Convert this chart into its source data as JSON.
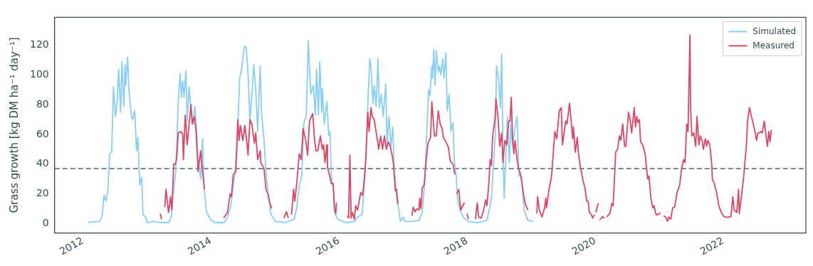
{
  "chart_data": {
    "type": "line",
    "ylabel": "Grass growth [kg DM ha⁻¹ day⁻¹]",
    "xlim": [
      2011.56,
      2023.29
    ],
    "xticks": [
      2012,
      2014,
      2016,
      2018,
      2020,
      2022
    ],
    "ylim": [
      -6.4,
      138.8
    ],
    "yticks": [
      0,
      20,
      40,
      60,
      80,
      100,
      120
    ],
    "legend": "top right",
    "ref_lines": [
      {
        "axis": "y",
        "value": 37,
        "color": "#4f6666",
        "line_style": "dashed"
      }
    ],
    "series": [
      {
        "name": "Simulated",
        "color": "#87cefa",
        "x": [
          2012.08,
          2012.26,
          2012.3,
          2012.33,
          2012.36,
          2012.39,
          2012.42,
          2012.45,
          2012.48,
          2012.51,
          2012.54,
          2012.56,
          2012.59,
          2012.61,
          2012.64,
          2012.66,
          2012.67,
          2012.7,
          2012.72,
          2012.76,
          2012.78,
          2012.81,
          2012.84,
          2012.86,
          2012.88,
          2012.89,
          2012.92,
          2012.94,
          2012.98,
          2013.01,
          2013.11,
          2013.22,
          2013.29,
          2013.34,
          2013.38,
          2013.42,
          2013.45,
          2013.49,
          2013.52,
          2013.54,
          2013.56,
          2013.58,
          2013.61,
          2013.63,
          2013.66,
          2013.69,
          2013.72,
          2013.75,
          2013.77,
          2013.8,
          2013.84,
          2013.87,
          2013.89,
          2013.93,
          2013.99,
          2014.06,
          2014.21,
          2014.26,
          2014.31,
          2014.37,
          2014.41,
          2014.45,
          2014.48,
          2014.52,
          2014.55,
          2014.58,
          2014.61,
          2014.64,
          2014.67,
          2014.7,
          2014.73,
          2014.77,
          2014.79,
          2014.83,
          2014.86,
          2014.9,
          2014.94,
          2015.01,
          2015.16,
          2015.3,
          2015.34,
          2015.38,
          2015.42,
          2015.45,
          2015.49,
          2015.52,
          2015.56,
          2015.6,
          2015.63,
          2015.65,
          2015.68,
          2015.7,
          2015.73,
          2015.74,
          2015.77,
          2015.81,
          2015.84,
          2015.86,
          2015.88,
          2015.91,
          2015.93,
          2015.98,
          2016.11,
          2016.24,
          2016.29,
          2016.36,
          2016.4,
          2016.42,
          2016.45,
          2016.48,
          2016.5,
          2016.53,
          2016.55,
          2016.58,
          2016.61,
          2016.63,
          2016.66,
          2016.69,
          2016.73,
          2016.75,
          2016.78,
          2016.81,
          2016.84,
          2016.86,
          2016.9,
          2016.93,
          2016.96,
          2017.0,
          2017.03,
          2017.14,
          2017.25,
          2017.3,
          2017.34,
          2017.37,
          2017.4,
          2017.42,
          2017.45,
          2017.46,
          2017.48,
          2017.5,
          2017.52,
          2017.55,
          2017.57,
          2017.59,
          2017.62,
          2017.64,
          2017.67,
          2017.69,
          2017.72,
          2017.75,
          2017.78,
          2017.8,
          2017.83,
          2017.85,
          2017.89,
          2017.94,
          2018.02,
          2018.16,
          2018.31,
          2018.38,
          2018.44,
          2018.46,
          2018.49,
          2018.52,
          2018.54,
          2018.56,
          2018.58,
          2018.6,
          2018.63,
          2018.66,
          2018.68,
          2018.71,
          2018.74,
          2018.78,
          2018.81,
          2018.85,
          2018.89,
          2018.95,
          2019.04
        ],
        "values": [
          0.9,
          1.4,
          4.4,
          19,
          15,
          22,
          47,
          48,
          92,
          72,
          84,
          104,
          75,
          109,
          79,
          107,
          93,
          112,
          90,
          72,
          70,
          76,
          49,
          58,
          36,
          26,
          31,
          6,
          4.4,
          0.6,
          1.4,
          0.6,
          0.6,
          0.6,
          4.4,
          23,
          35,
          81,
          101,
          85,
          96,
          85,
          103,
          69,
          92,
          75,
          67,
          79,
          67,
          44,
          30,
          57,
          26,
          8,
          2.9,
          0.6,
          0.6,
          4.4,
          12,
          32,
          53,
          98,
          104,
          119,
          119,
          101,
          70,
          86,
          107,
          90,
          62,
          106,
          75,
          56,
          35,
          17,
          6,
          1.4,
          0.6,
          2.9,
          10.5,
          26,
          32,
          67,
          73,
          123,
          87,
          93,
          73,
          104,
          73,
          109,
          75,
          91,
          67,
          82,
          59,
          62,
          32,
          23,
          7.5,
          2.9,
          0.6,
          1.4,
          4.4,
          6,
          29,
          46,
          79,
          111,
          105,
          81,
          93,
          79,
          111,
          78,
          87,
          72,
          94,
          53,
          72,
          52,
          65,
          40,
          17,
          10.5,
          1.4,
          4.4,
          1.4,
          1.4,
          2.1,
          7.5,
          29,
          61,
          90,
          86,
          106,
          98,
          117,
          93,
          116,
          102,
          106,
          100,
          111,
          98,
          115,
          76,
          87,
          62,
          68,
          43,
          32,
          17,
          9,
          4.4,
          1.4,
          0.6,
          2.1,
          17,
          59,
          106,
          98,
          78,
          114,
          50,
          17,
          40,
          72,
          41,
          67,
          52,
          62,
          72,
          32,
          32,
          9,
          2.1,
          1.4
        ]
      },
      {
        "name": "Measured",
        "color": "#e04462",
        "x": [
          2013.21,
          2013.23,
          2013.255,
          2013.28,
          2013.3,
          2013.33,
          2013.34,
          2013.37,
          2013.39,
          2013.42,
          2013.45,
          2013.47,
          2013.49,
          2013.53,
          2013.56,
          2013.57,
          2013.6,
          2013.63,
          2013.66,
          2013.69,
          2013.71,
          2013.74,
          2013.77,
          2013.8,
          2013.84,
          2013.87,
          2013.9,
          2014.05,
          2014.2,
          2014.26,
          2014.3,
          2014.32,
          2014.35,
          2014.39,
          2014.42,
          2014.44,
          2014.46,
          2014.5,
          2014.53,
          2014.56,
          2014.58,
          2014.61,
          2014.64,
          2014.68,
          2014.7,
          2014.73,
          2014.77,
          2014.78,
          2014.83,
          2014.86,
          2014.89,
          2014.92,
          2014.95,
          2015.05,
          2015.14,
          2015.18,
          2015.21,
          2015.235,
          2015.26,
          2015.29,
          2015.31,
          2015.34,
          2015.38,
          2015.41,
          2015.44,
          2015.48,
          2015.51,
          2015.54,
          2015.59,
          2015.62,
          2015.64,
          2015.67,
          2015.71,
          2015.74,
          2015.76,
          2015.78,
          2015.81,
          2015.82,
          2015.85,
          2015.88,
          2015.91,
          2015.93,
          2015.95,
          2015.96,
          2016.05,
          2016.13,
          2016.15,
          2016.17,
          2016.19,
          2016.21,
          2016.24,
          2016.26,
          2016.29,
          2016.34,
          2016.37,
          2016.4,
          2016.42,
          2016.45,
          2016.47,
          2016.5,
          2016.52,
          2016.55,
          2016.59,
          2016.62,
          2016.65,
          2016.68,
          2016.71,
          2016.74,
          2016.77,
          2016.8,
          2016.83,
          2016.85,
          2016.88,
          2016.9,
          2016.92,
          2017.03,
          2017.14,
          2017.16,
          2017.19,
          2017.22,
          2017.25,
          2017.26,
          2017.28,
          2017.3,
          2017.33,
          2017.36,
          2017.39,
          2017.43,
          2017.45,
          2017.49,
          2017.52,
          2017.55,
          2017.58,
          2017.61,
          2017.63,
          2017.67,
          2017.71,
          2017.74,
          2017.78,
          2017.81,
          2017.825,
          2017.84,
          2017.87,
          2017.9,
          2017.92,
          2017.96,
          2017.98,
          2018.0,
          2018.02,
          2018.07,
          2018.13,
          2018.16,
          2018.18,
          2018.22,
          2018.25,
          2018.29,
          2018.31,
          2018.34,
          2018.36,
          2018.38,
          2018.4,
          2018.44,
          2018.45,
          2018.48,
          2018.51,
          2018.54,
          2018.56,
          2018.59,
          2018.62,
          2018.65,
          2018.67,
          2018.69,
          2018.71,
          2018.73,
          2018.75,
          2018.78,
          2018.8,
          2018.84,
          2018.88,
          2018.91,
          2018.95,
          2019.02,
          2019.09,
          2019.1,
          2019.13,
          2019.17,
          2019.21,
          2019.23,
          2019.24,
          2019.28,
          2019.32,
          2019.34,
          2019.37,
          2019.4,
          2019.44,
          2019.47,
          2019.49,
          2019.54,
          2019.56,
          2019.6,
          2019.65,
          2019.66,
          2019.69,
          2019.72,
          2019.74,
          2019.77,
          2019.81,
          2019.84,
          2019.87,
          2019.89,
          2019.91,
          2019.94,
          2019.96,
          2019.99,
          2020.0,
          2020.01,
          2020.05,
          2020.06,
          2020.07,
          2020.12,
          2020.14,
          2020.16,
          2020.18,
          2020.21,
          2020.23,
          2020.26,
          2020.28,
          2020.3,
          2020.32,
          2020.35,
          2020.38,
          2020.4,
          2020.43,
          2020.46,
          2020.48,
          2020.52,
          2020.54,
          2020.57,
          2020.61,
          2020.63,
          2020.65,
          2020.67,
          2020.69,
          2020.71,
          2020.74,
          2020.78,
          2020.82,
          2020.84,
          2020.87,
          2020.9,
          2020.92,
          2020.95,
          2020.98,
          2021.02,
          2021.045,
          2021.07,
          2021.1,
          2021.13,
          2021.15,
          2021.18,
          2021.21,
          2021.24,
          2021.28,
          2021.32,
          2021.35,
          2021.38,
          2021.4,
          2021.41,
          2021.43,
          2021.45,
          2021.48,
          2021.49,
          2021.51,
          2021.54,
          2021.57,
          2021.59,
          2021.62,
          2021.64,
          2021.67,
          2021.69,
          2021.72,
          2021.74,
          2021.76,
          2021.79,
          2021.82,
          2021.83,
          2021.86,
          2021.9,
          2021.93,
          2021.97,
          2022.01,
          2022.06,
          2022.12,
          2022.15,
          2022.17,
          2022.21,
          2022.24,
          2022.25,
          2022.28,
          2022.32,
          2022.36,
          2022.38,
          2022.41,
          2022.44,
          2022.48,
          2022.5,
          2022.52,
          2022.54,
          2022.56,
          2022.59,
          2022.61,
          2022.64,
          2022.67,
          2022.69,
          2022.71,
          2022.73,
          2022.75
        ],
        "values": [
          6.7,
          2.9,
          null,
          11,
          23,
          10.5,
          7.5,
          18,
          9,
          40,
          40,
          46,
          61,
          62,
          60,
          43,
          73,
          53,
          67,
          80,
          67,
          72,
          62,
          35,
          49,
          35,
          23,
          null,
          3.7,
          7.5,
          20,
          18,
          33,
          35,
          70,
          56,
          66,
          56,
          66,
          55,
          46,
          70,
          67,
          54,
          61,
          43,
          49,
          41,
          37,
          23,
          20,
          14,
          10,
          null,
          3.7,
          8,
          3.7,
          null,
          6,
          23,
          15,
          27,
          47,
          43,
          64,
          56,
          46,
          69,
          74,
          56,
          49,
          49,
          59,
          50,
          53,
          41,
          53,
          38,
          33,
          27,
          27,
          10.5,
          6.7,
          14,
          null,
          5.2,
          3.7,
          46,
          3.7,
          7.5,
          2.9,
          12,
          9,
          21,
          19,
          32,
          44,
          75,
          62,
          78,
          72,
          70,
          59,
          50,
          59,
          50,
          59,
          50,
          55,
          52,
          46,
          40,
          22,
          23,
          13,
          null,
          5.2,
          11,
          8,
          10,
          9,
          17,
          10,
          24,
          26,
          42,
          54,
          58,
          82,
          59,
          59,
          76,
          67,
          64,
          58,
          55,
          51,
          42,
          40,
          33,
          null,
          20,
          23,
          9,
          11,
          14,
          null,
          6.7,
          2.9,
          null,
          2.9,
          14,
          4.4,
          3.7,
          7.5,
          16,
          12,
          27,
          43,
          39,
          59,
          72,
          84,
          73,
          52,
          61,
          41,
          56,
          53,
          69,
          69,
          85,
          58,
          47,
          56,
          43,
          38,
          32,
          20,
          13,
          9,
          null,
          6.7,
          18,
          9,
          4.4,
          10.5,
          17,
          10.5,
          23,
          32,
          44,
          62,
          57,
          76,
          78,
          53,
          69,
          67,
          81,
          57,
          65,
          48,
          58,
          47,
          38,
          29,
          24,
          15,
          15,
          7.5,
          6,
          3.7,
          6,
          null,
          7.5,
          13.6,
          null,
          2.4,
          4.7,
          3.4,
          null,
          4.4,
          6,
          6.7,
          13.6,
          12,
          29,
          48,
          50,
          59,
          56,
          67,
          52,
          52,
          75,
          72,
          61,
          78,
          65,
          72,
          68,
          70,
          55,
          53,
          47,
          30,
          32,
          17,
          10.5,
          12,
          6,
          6,
          7.2,
          null,
          5.2,
          4.4,
          1.4,
          4.4,
          2.9,
          10.5,
          11,
          21,
          26,
          37,
          43,
          41,
          47,
          67,
          62,
          127,
          78,
          59,
          61,
          52,
          72,
          53,
          59,
          56,
          50,
          57,
          52,
          56,
          53,
          40,
          30,
          27,
          20,
          12,
          7.5,
          4.7,
          4.1,
          4.7,
          18,
          9,
          7.5,
          23,
          6.7,
          17,
          32,
          52,
          69,
          78,
          72,
          65,
          61,
          56,
          61,
          61,
          62,
          61,
          69,
          58,
          52,
          62,
          55,
          63
        ]
      }
    ]
  }
}
